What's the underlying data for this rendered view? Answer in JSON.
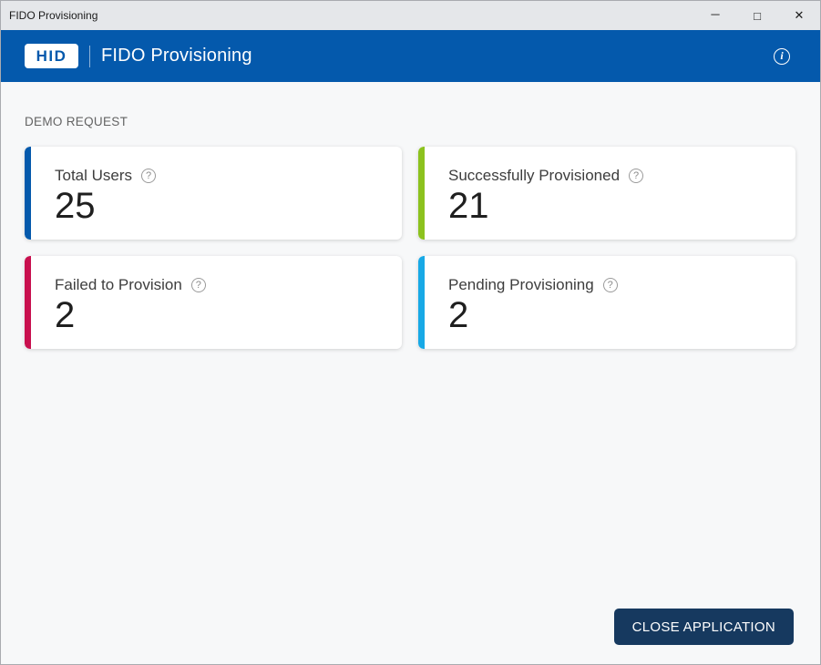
{
  "window": {
    "title": "FIDO Provisioning",
    "minimize_glyph": "─",
    "maximize_glyph": "□",
    "close_glyph": "✕"
  },
  "header": {
    "logo_text": "HID",
    "app_title": "FIDO Provisioning",
    "info_glyph": "i",
    "background_color": "#0459ac"
  },
  "section_label": "DEMO REQUEST",
  "cards": [
    {
      "title": "Total Users",
      "value": "25",
      "help_glyph": "?",
      "accent_color": "#0459ac"
    },
    {
      "title": "Successfully Provisioned",
      "value": "21",
      "help_glyph": "?",
      "accent_color": "#8cc21e"
    },
    {
      "title": "Failed to Provision",
      "value": "2",
      "help_glyph": "?",
      "accent_color": "#c8104e"
    },
    {
      "title": "Pending Provisioning",
      "value": "2",
      "help_glyph": "?",
      "accent_color": "#18a9e6"
    }
  ],
  "footer": {
    "close_button_label": "CLOSE APPLICATION",
    "button_color": "#16395f"
  }
}
